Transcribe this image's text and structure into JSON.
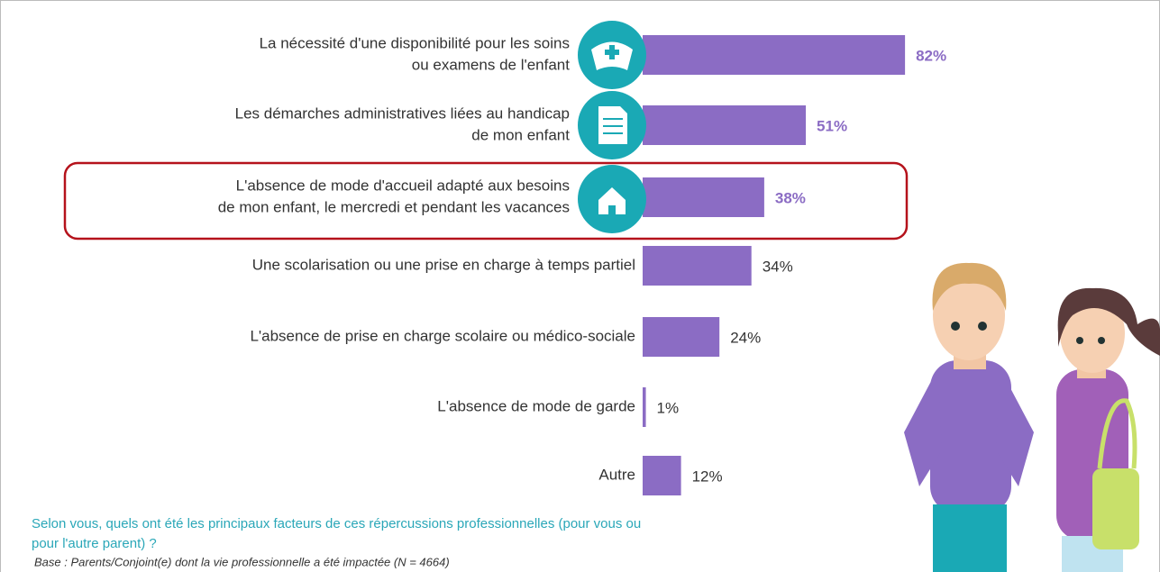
{
  "chart_data": {
    "type": "bar",
    "categories": [
      [
        "La nécessité d'une disponibilité pour les soins",
        "ou examens de l'enfant"
      ],
      [
        "Les démarches administratives liées au handicap",
        "de mon enfant"
      ],
      [
        "L'absence de mode d'accueil adapté aux besoins",
        "de mon enfant, le mercredi et pendant les vacances"
      ],
      [
        "Une scolarisation ou une prise en charge à temps partiel"
      ],
      [
        "L'absence de prise en charge scolaire ou médico-sociale"
      ],
      [
        "L'absence de mode de garde"
      ],
      [
        "Autre"
      ]
    ],
    "values": [
      82,
      51,
      38,
      34,
      24,
      1,
      12
    ],
    "value_labels": [
      "82%",
      "51%",
      "38%",
      "34%",
      "24%",
      "1%",
      "12%"
    ],
    "value_label_colors": [
      "#8b6cc4",
      "#8b6cc4",
      "#8b6cc4",
      "#333333",
      "#333333",
      "#333333",
      "#333333"
    ],
    "color": "#8b6cc4",
    "highlight_index": 2,
    "question": [
      "Selon vous, quels ont été les principaux facteurs de ces répercussions professionnelles (pour vous ou",
      "pour l'autre parent) ?"
    ],
    "base_note": "Base : Parents/Conjoint(e) dont la vie professionnelle a été impactée (N = 4664)"
  }
}
